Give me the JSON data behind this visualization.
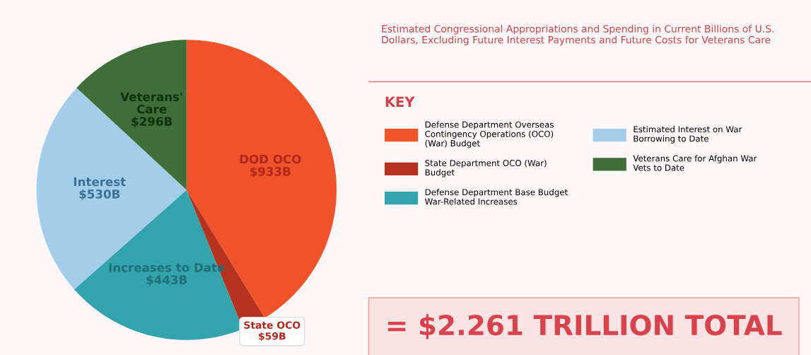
{
  "chart_data": {
    "type": "pie",
    "title": "Estimated Congressional Appropriations and Spending in Current Billions of U.S. Dollars, Excluding Future Interest Payments and Future Costs for Veterans Care",
    "categories": [
      "Defense Department Overseas Contingency Operations (OCO) (War) Budget",
      "State Department OCO (War) Budget",
      "Defense Department Base Budget War-Related Increases",
      "Estimated Interest on War Borrowing to Date",
      "Veterans Care for Afghan War Vets to Date"
    ],
    "values": [
      933,
      59,
      443,
      530,
      296
    ],
    "value_labels": [
      "$933B",
      "$59B",
      "$443B",
      "$530B",
      "$296B"
    ],
    "colors": [
      "#f0532a",
      "#b5321f",
      "#33a3ae",
      "#a3cde8",
      "#3f6e3a"
    ],
    "legend": "right",
    "legend_title": "KEY",
    "annotations": [
      "= $2.261 TRILLION TOTAL",
      {
        "text": "DOD OCO",
        "x": "Defense Department Overseas Contingency Operations (OCO) (War) Budget"
      },
      {
        "text": "State OCO",
        "x": "State Department OCO (War) Budget"
      },
      {
        "text": "Increases to Date",
        "x": "Defense Department Base Budget War-Related Increases"
      },
      {
        "text": "Interest",
        "x": "Estimated Interest on War Borrowing to Date"
      },
      {
        "text": "Veterans'\nCare",
        "x": "Veterans Care for Afghan War Vets to Date"
      }
    ]
  }
}
